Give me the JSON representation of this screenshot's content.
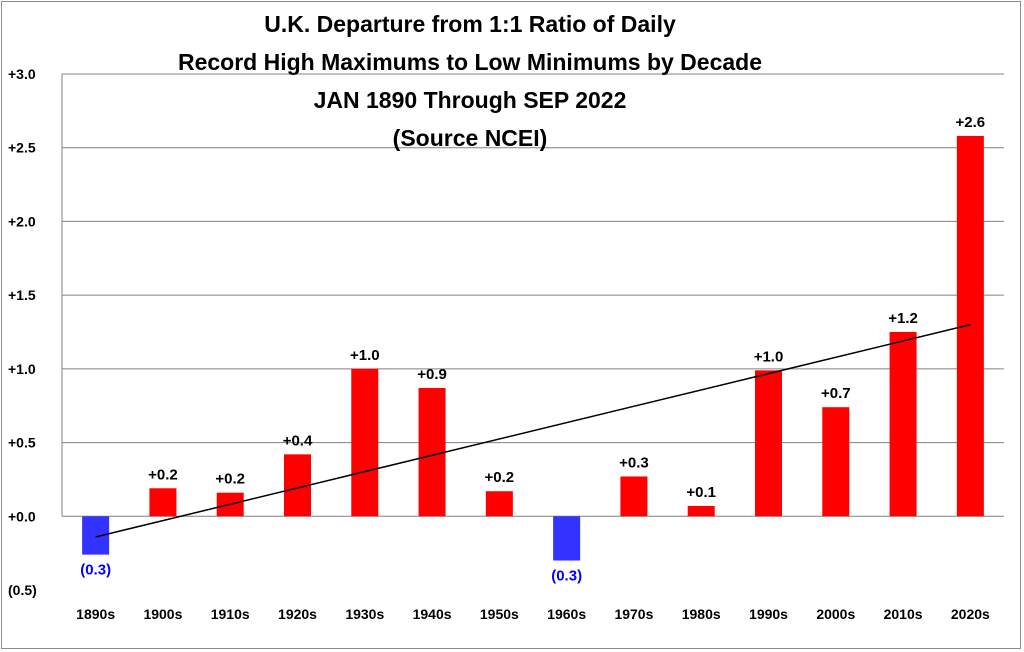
{
  "chart_data": {
    "type": "bar",
    "title_lines": [
      "U.K. Departure from 1:1 Ratio of Daily",
      "Record High Maximums to Low Minimums by Decade",
      "JAN 1890 Through SEP 2022",
      "(Source NCEI)"
    ],
    "categories": [
      "1890s",
      "1900s",
      "1910s",
      "1920s",
      "1930s",
      "1940s",
      "1950s",
      "1960s",
      "1970s",
      "1980s",
      "1990s",
      "2000s",
      "2010s",
      "2020s"
    ],
    "values": [
      -0.26,
      0.19,
      0.16,
      0.42,
      1.0,
      0.87,
      0.17,
      -0.3,
      0.27,
      0.07,
      0.99,
      0.74,
      1.25,
      2.58
    ],
    "data_labels": [
      "(0.3)",
      "+0.2",
      "+0.2",
      "+0.4",
      "+1.0",
      "+0.9",
      "+0.2",
      "(0.3)",
      "+0.3",
      "+0.1",
      "+1.0",
      "+0.7",
      "+1.2",
      "+2.6"
    ],
    "ylim": [
      -0.5,
      3.0
    ],
    "yticks": [
      3.0,
      2.5,
      2.0,
      1.5,
      1.0,
      0.5,
      0.0,
      -0.5
    ],
    "ytick_labels": [
      "+3.0",
      "+2.5",
      "+2.0",
      "+1.5",
      "+1.0",
      "+0.5",
      "+0.0",
      "(0.5)"
    ],
    "trendline": {
      "start_value": -0.14,
      "end_value": 1.3
    },
    "grid": true,
    "colors": {
      "positive": "#ff0000",
      "negative": "#3333ff",
      "negative_label": "#0000ff",
      "positive_label": "#000000",
      "grid": "#808080",
      "trendline": "#000000"
    }
  }
}
